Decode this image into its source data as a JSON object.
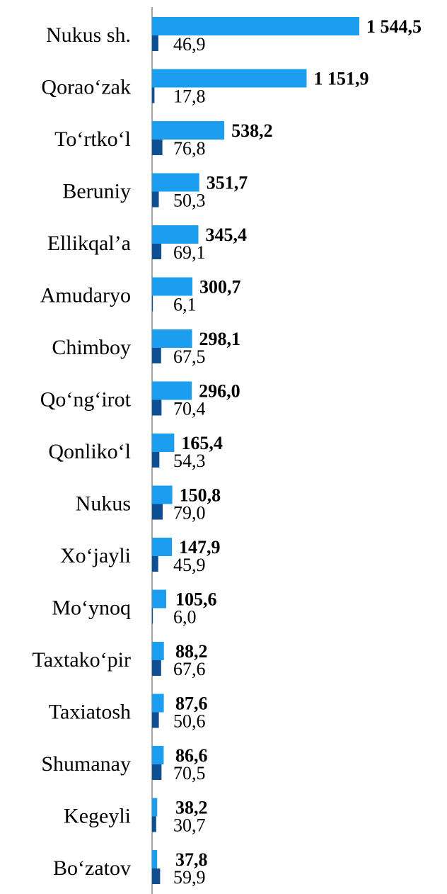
{
  "chart_data": {
    "type": "bar",
    "orientation": "horizontal",
    "categories": [
      "Nukus sh.",
      "Qorao‘zak",
      "To‘rtko‘l",
      "Beruniy",
      "Ellikqal’a",
      "Amudaryo",
      "Chimboy",
      "Qo‘ng‘irot",
      "Qonliko‘l",
      "Nukus",
      "Xo‘jayli",
      "Mo‘ynoq",
      "Taxtako‘pir",
      "Taxiatosh",
      "Shumanay",
      "Kegeyli",
      "Bo‘zatov"
    ],
    "series": [
      {
        "color": "#1b9ef0",
        "values": [
          1544.5,
          1151.9,
          538.2,
          351.7,
          345.4,
          300.7,
          298.1,
          296.0,
          165.4,
          150.8,
          147.9,
          105.6,
          88.2,
          87.6,
          86.6,
          38.2,
          37.8
        ],
        "value_labels": [
          "1 544,5",
          "1 151,9",
          "538,2",
          "351,7",
          "345,4",
          "300,7",
          "298,1",
          "296,0",
          "165,4",
          "150,8",
          "147,9",
          "105,6",
          "88,2",
          "87,6",
          "86,6",
          "38,2",
          "37,8"
        ]
      },
      {
        "color": "#0e4e92",
        "values": [
          46.9,
          17.8,
          76.8,
          50.3,
          69.1,
          6.1,
          67.5,
          70.4,
          54.3,
          79.0,
          45.9,
          6.0,
          67.6,
          50.6,
          70.5,
          30.7,
          59.9
        ],
        "value_labels": [
          "46,9",
          "17,8",
          "76,8",
          "50,3",
          "69,1",
          "6,1",
          "67,5",
          "70,4",
          "54,3",
          "79,0",
          "45,9",
          "6,0",
          "67,6",
          "50,6",
          "70,5",
          "30,7",
          "59,9"
        ]
      }
    ],
    "xlim": [
      0,
      1600
    ]
  }
}
